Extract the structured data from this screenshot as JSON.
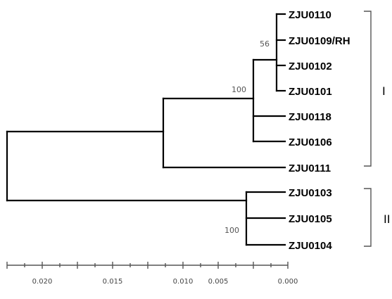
{
  "tree": {
    "leaves": [
      "ZJU0110",
      "ZJU0109/RH",
      "ZJU0102",
      "ZJU0101",
      "ZJU0118",
      "ZJU0106",
      "ZJU0111",
      "ZJU0103",
      "ZJU0105",
      "ZJU0104"
    ],
    "bootstrap": [
      "56",
      "100",
      "100"
    ],
    "clades": [
      "I",
      "II"
    ]
  },
  "scale_axis": {
    "ticks": [
      "0.020",
      "0.015",
      "0.010",
      "0.005",
      "0.000"
    ]
  }
}
